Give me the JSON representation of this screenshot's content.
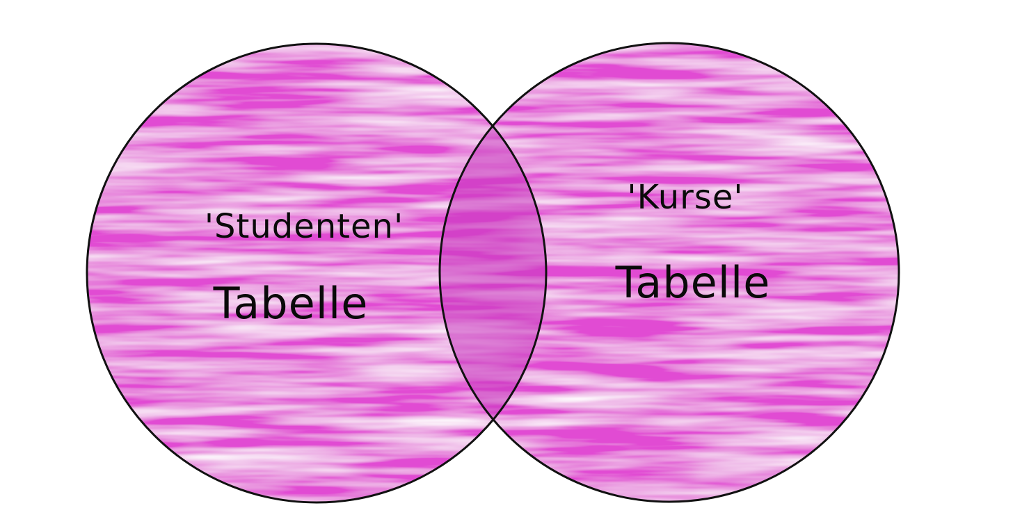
{
  "diagram": {
    "type": "venn",
    "fill_color": "#e14bd3",
    "fill_highlight": "#f29ae9",
    "outline_color": "#111111",
    "overlap_color": "#c93bbf",
    "sets": [
      {
        "label_line1": "'Studenten'",
        "label_line2": "Tabelle"
      },
      {
        "label_line1": "'Kurse'",
        "label_line2": "Tabelle"
      }
    ]
  }
}
